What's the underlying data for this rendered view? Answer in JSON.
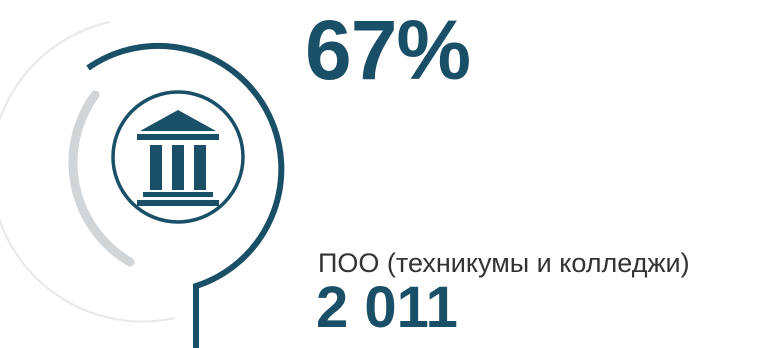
{
  "stat": {
    "percent": "67%",
    "category_label": "ПОО (техникумы и колледжи)",
    "count": "2 011",
    "share": 0.67
  },
  "icon": {
    "name": "institution-building-icon"
  },
  "colors": {
    "primary": "#1a4f68",
    "ring": "#1a4f68",
    "track_light": "#e6e8ea",
    "track_mid": "#d2d5d8",
    "label_text": "#333333",
    "background": "#ffffff"
  }
}
